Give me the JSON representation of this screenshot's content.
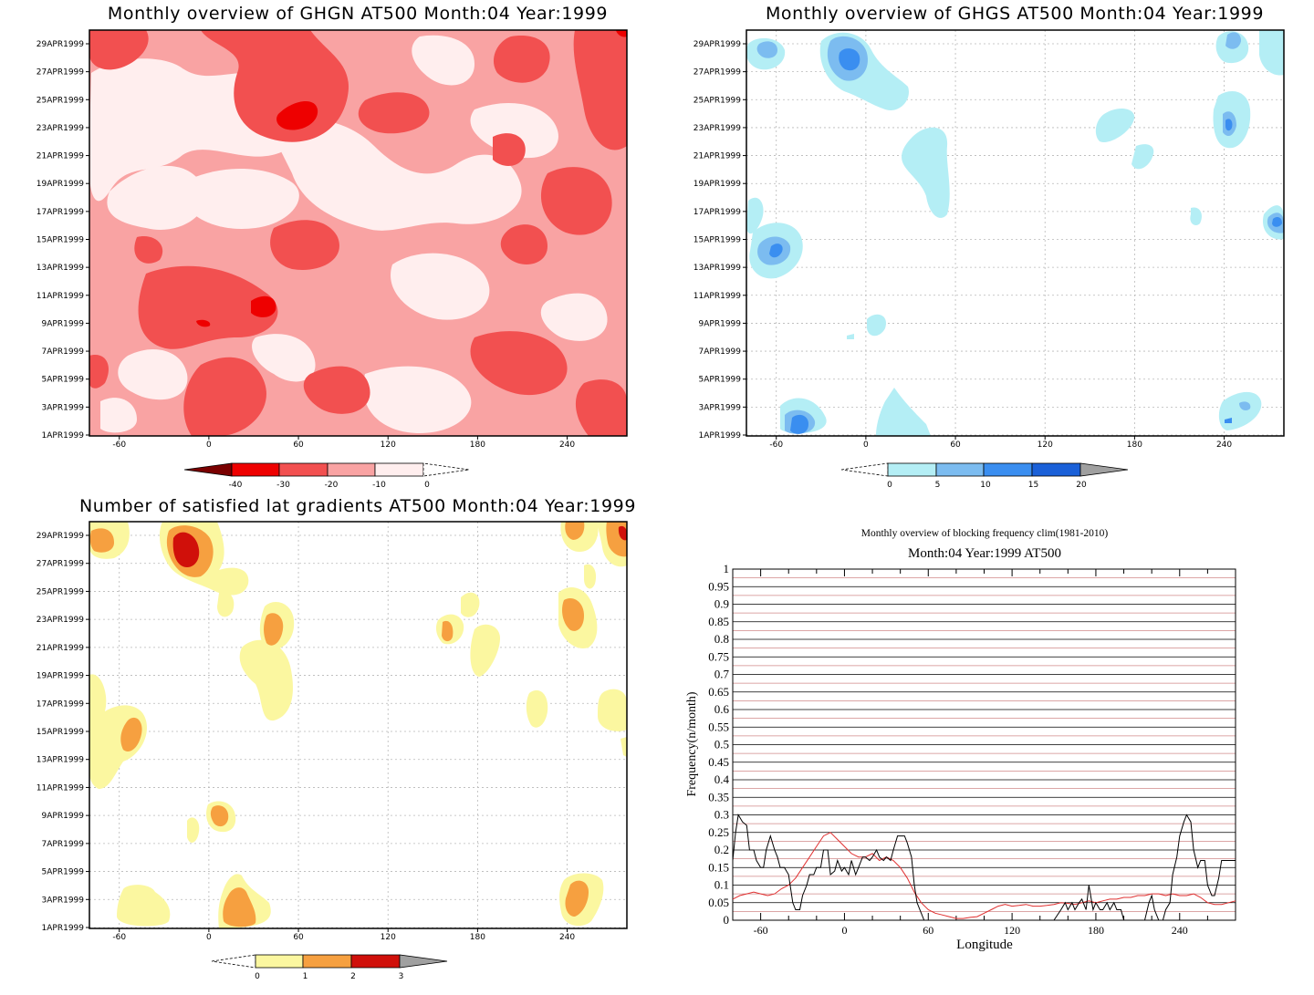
{
  "colors": {
    "gh_red": [
      "#ffeeee",
      "#f9a3a3",
      "#f25050",
      "#ee0000",
      "#7a0000"
    ],
    "gh_blue": [
      "#b4eef5",
      "#7cbcf0",
      "#3a8ef0",
      "#1a60d8",
      "#a0a0a0"
    ],
    "grad": [
      "#fbf7a0",
      "#f6a040",
      "#d0100a",
      "#a0a0a0"
    ],
    "clim_line": "#e03030",
    "year_line": "#000000",
    "grid_red": "#d08888"
  },
  "panels": {
    "ghgn": {
      "title": "Monthly overview of GHGN AT500 Month:04 Year:1999"
    },
    "ghgs": {
      "title": "Monthly overview of GHGS AT500 Month:04 Year:1999"
    },
    "grad": {
      "title": "Number of satisfied lat gradients AT500 Month:04 Year:1999"
    },
    "freq": {
      "title": "Monthly overview of blocking frequency clim(1981-2010)",
      "subtitle": "Month:04 Year:1999  AT500"
    }
  },
  "dates": [
    "29APR1999",
    "27APR1999",
    "25APR1999",
    "23APR1999",
    "21APR1999",
    "19APR1999",
    "17APR1999",
    "15APR1999",
    "13APR1999",
    "11APR1999",
    "9APR1999",
    "7APR1999",
    "5APR1999",
    "3APR1999",
    "1APR1999"
  ],
  "lon_ticks": [
    "-60",
    "0",
    "60",
    "120",
    "180",
    "240"
  ],
  "colorbars": {
    "ghgn": [
      "-40",
      "-30",
      "-20",
      "-10",
      "0"
    ],
    "ghgs": [
      "0",
      "5",
      "10",
      "15",
      "20"
    ],
    "grad": [
      "0",
      "1",
      "2",
      "3"
    ]
  },
  "chart_data": [
    {
      "type": "heatmap",
      "title": "Monthly overview of GHGN AT500 Month:04 Year:1999",
      "x_ticks": [
        "-60",
        "0",
        "60",
        "120",
        "180",
        "240"
      ],
      "y_ticks": [
        "1APR1999",
        "3APR1999",
        "5APR1999",
        "7APR1999",
        "9APR1999",
        "11APR1999",
        "13APR1999",
        "15APR1999",
        "17APR1999",
        "19APR1999",
        "21APR1999",
        "23APR1999",
        "25APR1999",
        "27APR1999",
        "29APR1999"
      ],
      "levels": [
        -40,
        -30,
        -20,
        -10,
        0
      ]
    },
    {
      "type": "heatmap",
      "title": "Monthly overview of GHGS AT500 Month:04 Year:1999",
      "x_ticks": [
        "-60",
        "0",
        "60",
        "120",
        "180",
        "240"
      ],
      "y_ticks": [
        "1APR1999",
        "3APR1999",
        "5APR1999",
        "7APR1999",
        "9APR1999",
        "11APR1999",
        "13APR1999",
        "15APR1999",
        "17APR1999",
        "19APR1999",
        "21APR1999",
        "23APR1999",
        "25APR1999",
        "27APR1999",
        "29APR1999"
      ],
      "levels": [
        0,
        5,
        10,
        15,
        20
      ]
    },
    {
      "type": "heatmap",
      "title": "Number of satisfied lat gradients AT500 Month:04 Year:1999",
      "x_ticks": [
        "-60",
        "0",
        "60",
        "120",
        "180",
        "240"
      ],
      "y_ticks": [
        "1APR1999",
        "3APR1999",
        "5APR1999",
        "7APR1999",
        "9APR1999",
        "11APR1999",
        "13APR1999",
        "15APR1999",
        "17APR1999",
        "19APR1999",
        "21APR1999",
        "23APR1999",
        "25APR1999",
        "27APR1999",
        "29APR1999"
      ],
      "levels": [
        0,
        1,
        2,
        3
      ]
    },
    {
      "type": "line",
      "title": "Monthly overview of blocking frequency clim(1981-2010)",
      "subtitle": "Month:04 Year:1999  AT500",
      "xlabel": "Longitude",
      "ylabel": "Frequency(n/month)",
      "xlim": [
        -80,
        280
      ],
      "ylim": [
        0,
        1
      ],
      "x_ticks": [
        "-60",
        "0",
        "60",
        "120",
        "180",
        "240"
      ],
      "y_ticks": [
        "0",
        "0.05",
        "0.1",
        "0.15",
        "0.2",
        "0.25",
        "0.3",
        "0.35",
        "0.4",
        "0.45",
        "0.5",
        "0.55",
        "0.6",
        "0.65",
        "0.7",
        "0.75",
        "0.8",
        "0.85",
        "0.9",
        "0.95",
        "1"
      ],
      "series": [
        {
          "x": [
            -80,
            -78,
            -76,
            -73,
            -70,
            -68,
            -65,
            -63,
            -60,
            -58,
            -56,
            -53,
            -50,
            -48,
            -46,
            -43,
            -40,
            -37,
            -35,
            -32,
            -30,
            -27,
            -25,
            -22,
            -20,
            -17,
            -15,
            -12,
            -10,
            -7,
            -5,
            -2,
            0,
            3,
            5,
            8,
            10,
            13,
            15,
            18,
            20,
            23,
            25,
            28,
            30,
            33,
            35,
            38,
            40,
            43,
            45,
            48,
            50,
            52,
            55,
            57,
            60,
            62,
            65,
            70,
            80,
            90,
            100,
            110,
            120,
            130,
            140,
            150,
            155,
            158,
            160,
            163,
            165,
            168,
            170,
            173,
            175,
            178,
            180,
            183,
            185,
            188,
            190,
            193,
            195,
            198,
            200,
            205,
            210,
            215,
            218,
            220,
            222,
            225,
            228,
            230,
            233,
            235,
            238,
            240,
            243,
            245,
            248,
            250,
            253,
            255,
            258,
            260,
            263,
            265,
            268,
            270,
            273,
            275,
            280
          ],
          "y": [
            0.17,
            0.25,
            0.3,
            0.28,
            0.27,
            0.2,
            0.2,
            0.17,
            0.15,
            0.15,
            0.2,
            0.24,
            0.2,
            0.18,
            0.15,
            0.15,
            0.13,
            0.05,
            0.03,
            0.03,
            0.07,
            0.1,
            0.13,
            0.13,
            0.15,
            0.15,
            0.2,
            0.2,
            0.13,
            0.14,
            0.17,
            0.14,
            0.15,
            0.13,
            0.17,
            0.13,
            0.15,
            0.18,
            0.18,
            0.17,
            0.18,
            0.2,
            0.18,
            0.17,
            0.18,
            0.17,
            0.2,
            0.24,
            0.24,
            0.24,
            0.22,
            0.18,
            0.1,
            0.05,
            0.02,
            0,
            0,
            0,
            0,
            0,
            0,
            0,
            0,
            0,
            0,
            0,
            0,
            0,
            0.03,
            0.05,
            0.03,
            0.05,
            0.03,
            0.05,
            0.06,
            0.03,
            0.1,
            0.03,
            0.05,
            0.03,
            0.03,
            0.05,
            0.03,
            0.05,
            0.03,
            0.03,
            0,
            0,
            0,
            0,
            0.05,
            0.07,
            0.03,
            0,
            0,
            0.03,
            0.05,
            0.13,
            0.18,
            0.24,
            0.28,
            0.3,
            0.28,
            0.2,
            0.15,
            0.17,
            0.17,
            0.1,
            0.07,
            0.07,
            0.12,
            0.17,
            0.17,
            0.17,
            0.17
          ]
        },
        {
          "x": [
            -80,
            -75,
            -70,
            -65,
            -60,
            -55,
            -50,
            -45,
            -40,
            -35,
            -30,
            -25,
            -20,
            -15,
            -10,
            -5,
            0,
            5,
            10,
            15,
            20,
            25,
            30,
            35,
            40,
            45,
            50,
            55,
            60,
            65,
            70,
            75,
            80,
            85,
            90,
            95,
            100,
            105,
            110,
            115,
            120,
            125,
            130,
            135,
            140,
            145,
            150,
            155,
            160,
            165,
            170,
            175,
            180,
            185,
            190,
            195,
            200,
            205,
            210,
            215,
            220,
            225,
            230,
            235,
            240,
            245,
            250,
            255,
            260,
            265,
            270,
            275,
            280
          ],
          "y": [
            0.06,
            0.07,
            0.075,
            0.08,
            0.075,
            0.07,
            0.075,
            0.09,
            0.1,
            0.12,
            0.15,
            0.18,
            0.21,
            0.24,
            0.25,
            0.23,
            0.21,
            0.19,
            0.18,
            0.18,
            0.19,
            0.17,
            0.18,
            0.17,
            0.15,
            0.12,
            0.08,
            0.05,
            0.03,
            0.02,
            0.015,
            0.01,
            0.005,
            0.005,
            0.008,
            0.01,
            0.02,
            0.03,
            0.04,
            0.045,
            0.04,
            0.042,
            0.045,
            0.04,
            0.04,
            0.042,
            0.045,
            0.05,
            0.048,
            0.045,
            0.05,
            0.055,
            0.05,
            0.055,
            0.06,
            0.06,
            0.065,
            0.065,
            0.07,
            0.07,
            0.075,
            0.075,
            0.07,
            0.075,
            0.07,
            0.07,
            0.075,
            0.065,
            0.05,
            0.045,
            0.045,
            0.05,
            0.055
          ]
        }
      ]
    }
  ]
}
